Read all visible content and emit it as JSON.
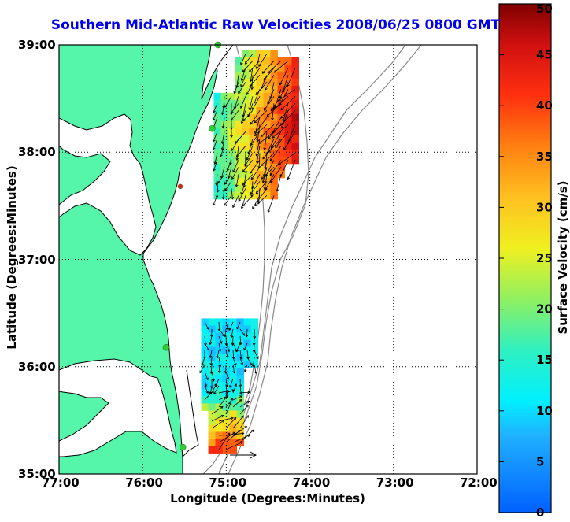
{
  "title": "Southern Mid-Atlantic Raw Velocities 2008/06/25 0800 GMT",
  "xaxis_label": "Longitude (Degrees:Minutes)",
  "yaxis_label": "Latitude (Degrees:Minutes)",
  "colorbar_label": "Surface Velocity (cm/s)",
  "x_ticks": [
    {
      "label": "77:00",
      "lon": -77
    },
    {
      "label": "76:00",
      "lon": -76
    },
    {
      "label": "75:00",
      "lon": -75
    },
    {
      "label": "74:00",
      "lon": -74
    },
    {
      "label": "73:00",
      "lon": -73
    },
    {
      "label": "72:00",
      "lon": -72
    }
  ],
  "y_ticks": [
    {
      "label": "35:00",
      "lat": 35
    },
    {
      "label": "36:00",
      "lat": 36
    },
    {
      "label": "37:00",
      "lat": 37
    },
    {
      "label": "38:00",
      "lat": 38
    },
    {
      "label": "39:00",
      "lat": 39
    }
  ],
  "colorbar_ticks": [
    "0",
    "5",
    "10",
    "15",
    "20",
    "25",
    "30",
    "35",
    "40",
    "45",
    "50"
  ],
  "colors": {
    "land": "#55f5aa",
    "coast": "#000000",
    "bathymetry": "#888888",
    "title": "#0000ee",
    "vectors": "#000000",
    "station_marker": "#33cc33",
    "station_marker_alert": "#dd2222"
  },
  "map": {
    "lon_range": [
      -77,
      -72
    ],
    "lat_range": [
      35,
      39
    ],
    "grid": "dotted",
    "colorbar_range_cm_s": [
      0,
      50
    ]
  },
  "chart_data": {
    "type": "vector-field-map",
    "x_range": [
      -77,
      -72
    ],
    "y_range": [
      35,
      39
    ],
    "velocity_range_cm_s": [
      0,
      50
    ],
    "stations": [
      {
        "lon": -75.1,
        "lat": 39.0,
        "status": "ok"
      },
      {
        "lon": -75.17,
        "lat": 38.22,
        "status": "ok"
      },
      {
        "lon": -75.55,
        "lat": 37.68,
        "status": "alert"
      },
      {
        "lon": -75.72,
        "lat": 36.18,
        "status": "ok"
      },
      {
        "lon": -75.52,
        "lat": 35.25,
        "status": "ok"
      }
    ],
    "regions": [
      {
        "name": "north-cluster",
        "lon_range": [
          -75.15,
          -74.15
        ],
        "lat_range": [
          37.6,
          38.95
        ],
        "speed_range_cm_s": [
          10,
          50
        ]
      },
      {
        "name": "south-cluster",
        "lon_range": [
          -75.3,
          -74.6
        ],
        "lat_range": [
          35.25,
          36.45
        ],
        "speed_range_cm_s": [
          10,
          45
        ]
      }
    ],
    "reference_vector": {
      "lon": -74.75,
      "lat": 35.18
    }
  }
}
